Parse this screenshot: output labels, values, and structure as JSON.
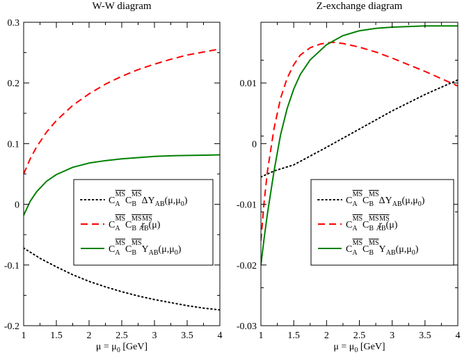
{
  "chart_data": [
    {
      "type": "line",
      "title": "W-W diagram",
      "xlabel_main": "μ = μ",
      "xlabel_sub": "0",
      "xlabel_unit": "[GeV]",
      "xlim": [
        1,
        4
      ],
      "ylim": [
        -0.2,
        0.3
      ],
      "xticks": [
        1,
        1.5,
        2,
        2.5,
        3,
        3.5,
        4
      ],
      "xtick_labels": [
        "1",
        "1.5",
        "2",
        "2.5",
        "3",
        "3.5",
        "4"
      ],
      "yticks": [
        -0.2,
        -0.1,
        0,
        0.1,
        0.2,
        0.3
      ],
      "ytick_labels": [
        "-0.2",
        "-0.1",
        "0",
        "0.1",
        "0.2",
        "0.3"
      ],
      "legend_position": "lower-right",
      "series": [
        {
          "name": "ΔY",
          "legend_main": "ΔY",
          "legend_sub": "AB",
          "legend_tail": "(μ,μ",
          "legend_tail_sub": "0",
          "legend_end": ")",
          "style": "dotted",
          "color": "#000000",
          "x": [
            1,
            1.25,
            1.5,
            1.75,
            2,
            2.25,
            2.5,
            2.75,
            3,
            3.25,
            3.5,
            3.75,
            4
          ],
          "values": [
            -0.072,
            -0.089,
            -0.103,
            -0.116,
            -0.127,
            -0.136,
            -0.144,
            -0.151,
            -0.157,
            -0.162,
            -0.167,
            -0.171,
            -0.174
          ]
        },
        {
          "name": "r",
          "legend_main": "r",
          "legend_sub": "AB",
          "legend_tail": "(μ)",
          "legend_tail_sub": "",
          "legend_end": "",
          "style": "dashed",
          "color": "#ff0000",
          "x": [
            1,
            1.1,
            1.2,
            1.35,
            1.5,
            1.75,
            2,
            2.25,
            2.5,
            2.75,
            3,
            3.25,
            3.5,
            3.75,
            4
          ],
          "values": [
            0.05,
            0.075,
            0.095,
            0.119,
            0.138,
            0.163,
            0.182,
            0.198,
            0.211,
            0.222,
            0.231,
            0.239,
            0.246,
            0.251,
            0.256
          ]
        },
        {
          "name": "Y",
          "legend_main": "Y",
          "legend_sub": "AB",
          "legend_tail": "(μ,μ",
          "legend_tail_sub": "0",
          "legend_end": ")",
          "style": "solid",
          "color": "#008000",
          "x": [
            1,
            1.1,
            1.2,
            1.35,
            1.5,
            1.75,
            2,
            2.25,
            2.5,
            2.75,
            3,
            3.25,
            3.5,
            3.75,
            4
          ],
          "values": [
            -0.018,
            0.005,
            0.021,
            0.038,
            0.049,
            0.061,
            0.068,
            0.072,
            0.075,
            0.077,
            0.079,
            0.08,
            0.0805,
            0.081,
            0.0815
          ]
        }
      ]
    },
    {
      "type": "line",
      "title": "Z-exchange diagram",
      "xlabel_main": "μ = μ",
      "xlabel_sub": "0",
      "xlabel_unit": "[GeV]",
      "xlim": [
        1,
        4
      ],
      "ylim": [
        -0.03,
        0.02
      ],
      "xticks": [
        1,
        1.5,
        2,
        2.5,
        3,
        3.5,
        4
      ],
      "xtick_labels": [
        "1",
        "1.5",
        "2",
        "2.5",
        "3",
        "3.5",
        "4"
      ],
      "yticks": [
        -0.03,
        -0.02,
        -0.01,
        0,
        0.01
      ],
      "ytick_labels": [
        "-0.03",
        "-0.02",
        "-0.01",
        "0",
        "0.01"
      ],
      "legend_position": "lower-right",
      "series": [
        {
          "name": "ΔY",
          "legend_main": "ΔY",
          "legend_sub": "AB",
          "legend_tail": "(μ,μ",
          "legend_tail_sub": "0",
          "legend_end": ")",
          "style": "dotted",
          "color": "#000000",
          "x": [
            1,
            1.2,
            1.5,
            2,
            2.5,
            3,
            3.5,
            4
          ],
          "values": [
            -0.0055,
            -0.0045,
            -0.0035,
            -0.0006,
            0.0024,
            0.0054,
            0.0081,
            0.0105
          ]
        },
        {
          "name": "r",
          "legend_main": "r",
          "legend_sub": "AB",
          "legend_tail": "(μ)",
          "legend_tail_sub": "",
          "legend_end": "",
          "style": "dashed",
          "color": "#ff0000",
          "x": [
            1,
            1.05,
            1.1,
            1.2,
            1.3,
            1.4,
            1.5,
            1.6,
            1.75,
            1.9,
            2,
            2.1,
            2.25,
            2.5,
            2.75,
            3,
            3.25,
            3.5,
            3.75,
            4
          ],
          "values": [
            -0.016,
            -0.0095,
            -0.0045,
            0.0025,
            0.0075,
            0.0108,
            0.013,
            0.0146,
            0.0158,
            0.0164,
            0.0166,
            0.0167,
            0.0165,
            0.0159,
            0.0151,
            0.0141,
            0.013,
            0.0119,
            0.0107,
            0.0095
          ]
        },
        {
          "name": "Y",
          "legend_main": "Y",
          "legend_sub": "AB",
          "legend_tail": "(μ,μ",
          "legend_tail_sub": "0",
          "legend_end": ")",
          "style": "solid",
          "color": "#008000",
          "x": [
            1,
            1.05,
            1.1,
            1.2,
            1.3,
            1.4,
            1.5,
            1.6,
            1.75,
            2,
            2.25,
            2.5,
            2.75,
            3,
            3.25,
            3.5,
            3.75,
            4
          ],
          "values": [
            -0.02,
            -0.0155,
            -0.0115,
            -0.0045,
            0.0015,
            0.0058,
            0.009,
            0.0114,
            0.0138,
            0.0163,
            0.0178,
            0.0186,
            0.019,
            0.0192,
            0.0193,
            0.0194,
            0.0194,
            0.0194
          ]
        }
      ]
    }
  ],
  "legend_coeffs": {
    "c": "C",
    "a": "A",
    "b": "B",
    "ms": "MS"
  }
}
